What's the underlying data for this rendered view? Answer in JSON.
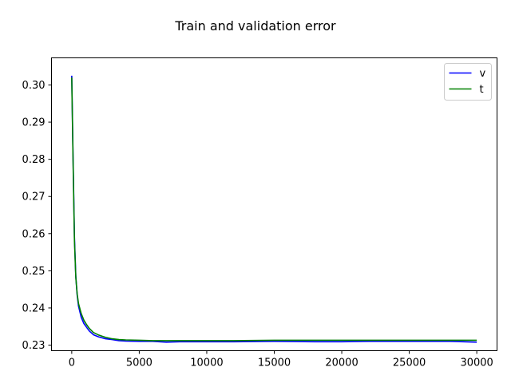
{
  "chart_data": {
    "type": "line",
    "title": "Train and validation error",
    "xlabel": "",
    "ylabel": "",
    "xlim": [
      -1500,
      31500
    ],
    "ylim": [
      0.2285,
      0.3073
    ],
    "xticks": [
      0,
      5000,
      10000,
      15000,
      20000,
      25000,
      30000
    ],
    "xtick_labels": [
      "0",
      "5000",
      "10000",
      "15000",
      "20000",
      "25000",
      "30000"
    ],
    "yticks": [
      0.23,
      0.24,
      0.25,
      0.26,
      0.27,
      0.28,
      0.29,
      0.3
    ],
    "ytick_labels": [
      "0.23",
      "0.24",
      "0.25",
      "0.26",
      "0.27",
      "0.28",
      "0.29",
      "0.30"
    ],
    "grid": false,
    "legend_position": "top-right",
    "series": [
      {
        "name": "v",
        "color": "#0000ff",
        "x": [
          0,
          100,
          200,
          300,
          400,
          500,
          700,
          900,
          1100,
          1300,
          1600,
          2000,
          2500,
          3000,
          3500,
          4000,
          5000,
          6000,
          7000,
          8000,
          10000,
          12000,
          15000,
          18000,
          20000,
          22000,
          25000,
          28000,
          30000
        ],
        "y": [
          0.3025,
          0.28,
          0.259,
          0.2485,
          0.2435,
          0.2405,
          0.2375,
          0.2358,
          0.2348,
          0.2338,
          0.2328,
          0.2322,
          0.2317,
          0.2315,
          0.2312,
          0.2311,
          0.231,
          0.231,
          0.2308,
          0.2309,
          0.2309,
          0.2309,
          0.231,
          0.2309,
          0.2309,
          0.231,
          0.231,
          0.231,
          0.2308
        ]
      },
      {
        "name": "t",
        "color": "#008000",
        "x": [
          0,
          100,
          200,
          300,
          400,
          500,
          700,
          900,
          1100,
          1300,
          1600,
          2000,
          2500,
          3000,
          3500,
          4000,
          5000,
          6000,
          7000,
          8000,
          10000,
          12000,
          15000,
          18000,
          20000,
          22000,
          25000,
          28000,
          30000
        ],
        "y": [
          0.302,
          0.279,
          0.258,
          0.2482,
          0.2438,
          0.2412,
          0.2385,
          0.2367,
          0.2355,
          0.2345,
          0.2334,
          0.2327,
          0.2321,
          0.2317,
          0.2315,
          0.2314,
          0.2313,
          0.2312,
          0.2312,
          0.2312,
          0.2312,
          0.2312,
          0.2313,
          0.2313,
          0.2313,
          0.2313,
          0.2313,
          0.2313,
          0.2313
        ]
      }
    ]
  }
}
